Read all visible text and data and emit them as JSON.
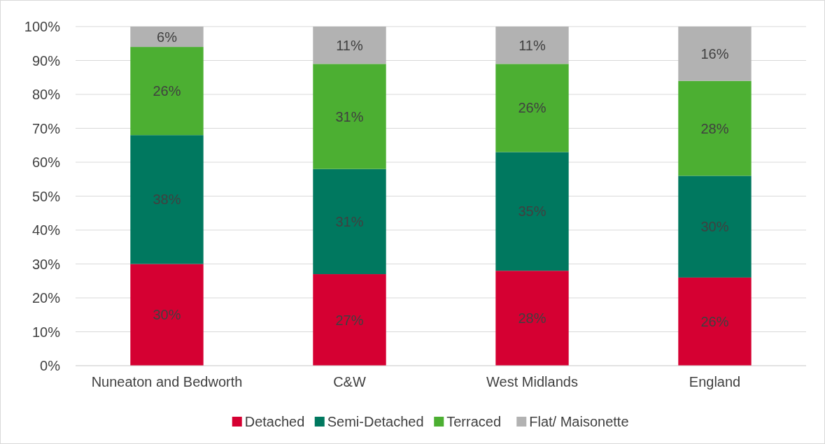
{
  "chart_data": {
    "type": "bar",
    "stacked": true,
    "categories": [
      "Nuneaton and Bedworth",
      "C&W",
      "West Midlands",
      "England"
    ],
    "series": [
      {
        "name": "Detached",
        "color": "#d50032",
        "values": [
          30,
          27,
          28,
          26
        ],
        "value_labels": [
          "30%",
          "27%",
          "28%",
          "26%"
        ]
      },
      {
        "name": "Semi-Detached",
        "color": "#00785f",
        "values": [
          38,
          31,
          35,
          30
        ],
        "value_labels": [
          "38%",
          "31%",
          "35%",
          "30%"
        ]
      },
      {
        "name": "Terraced",
        "color": "#4caf32",
        "values": [
          26,
          31,
          26,
          28
        ],
        "value_labels": [
          "26%",
          "31%",
          "26%",
          "28%"
        ]
      },
      {
        "name": "Flat/ Maisonette",
        "color": "#b2b2b2",
        "values": [
          6,
          11,
          11,
          16
        ],
        "value_labels": [
          "6%",
          "11%",
          "11%",
          "16%"
        ]
      }
    ],
    "ylim": [
      0,
      100
    ],
    "yticks": [
      {
        "value": 0,
        "label": "0%"
      },
      {
        "value": 10,
        "label": "10%"
      },
      {
        "value": 20,
        "label": "20%"
      },
      {
        "value": 30,
        "label": "30%"
      },
      {
        "value": 40,
        "label": "40%"
      },
      {
        "value": 50,
        "label": "50%"
      },
      {
        "value": 60,
        "label": "60%"
      },
      {
        "value": 70,
        "label": "70%"
      },
      {
        "value": 80,
        "label": "80%"
      },
      {
        "value": 90,
        "label": "90%"
      },
      {
        "value": 100,
        "label": "100%"
      }
    ],
    "grid": "y",
    "legend": "bottom"
  }
}
